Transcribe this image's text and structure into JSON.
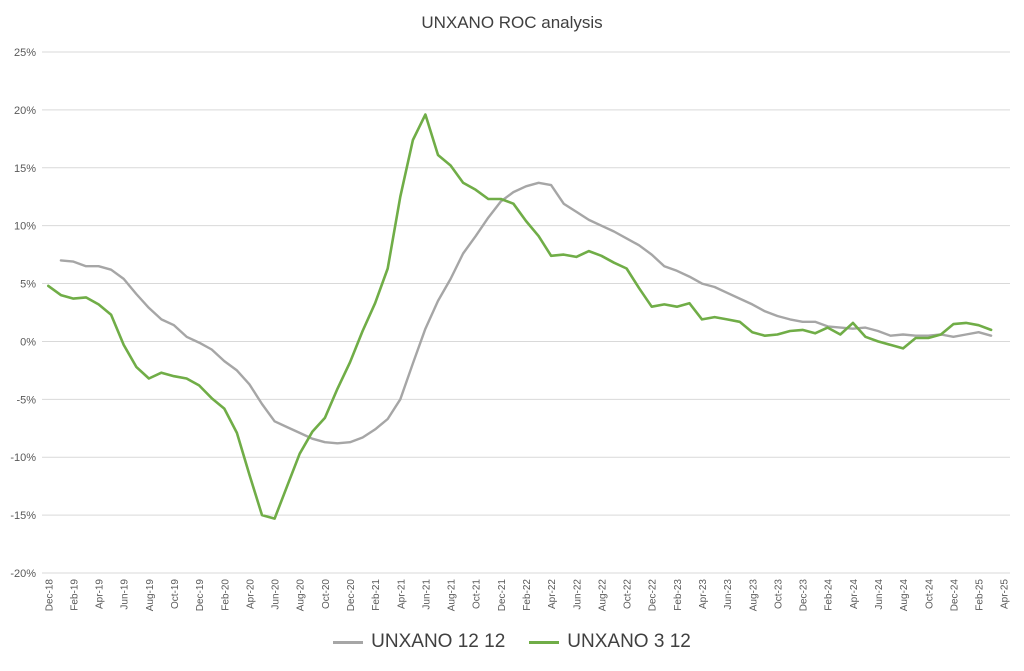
{
  "chart_data": {
    "type": "line",
    "title": "UNXANO ROC analysis",
    "xlabel": "",
    "ylabel": "",
    "ylim": [
      -20,
      25
    ],
    "y_ticks": [
      "-20%",
      "-15%",
      "-10%",
      "-5%",
      "0%",
      "5%",
      "10%",
      "15%",
      "20%",
      "25%"
    ],
    "y_tick_values": [
      -20,
      -15,
      -10,
      -5,
      0,
      5,
      10,
      15,
      20,
      25
    ],
    "x_tick_labels": [
      "Dec-18",
      "Feb-19",
      "Apr-19",
      "Jun-19",
      "Aug-19",
      "Oct-19",
      "Dec-19",
      "Feb-20",
      "Apr-20",
      "Jun-20",
      "Aug-20",
      "Oct-20",
      "Dec-20",
      "Feb-21",
      "Apr-21",
      "Jun-21",
      "Aug-21",
      "Oct-21",
      "Dec-21",
      "Feb-22",
      "Apr-22",
      "Jun-22",
      "Aug-22",
      "Oct-22",
      "Dec-22",
      "Feb-23",
      "Apr-23",
      "Jun-23",
      "Aug-23",
      "Oct-23",
      "Dec-23",
      "Feb-24",
      "Apr-24",
      "Jun-24",
      "Aug-24",
      "Oct-24",
      "Dec-24",
      "Feb-25",
      "Apr-25"
    ],
    "grid": true,
    "legend_position": "bottom",
    "series": [
      {
        "name": "UNXANO 12 12",
        "color": "#a6a6a6",
        "start": "Jan-19",
        "values": [
          7.0,
          6.9,
          6.5,
          6.5,
          6.2,
          5.4,
          4.1,
          2.9,
          1.9,
          1.4,
          0.4,
          -0.1,
          -0.7,
          -1.7,
          -2.5,
          -3.7,
          -5.4,
          -6.9,
          -7.4,
          -7.9,
          -8.4,
          -8.7,
          -8.8,
          -8.7,
          -8.3,
          -7.6,
          -6.7,
          -5.0,
          -1.9,
          1.1,
          3.5,
          5.4,
          7.6,
          9.1,
          10.7,
          12.1,
          12.9,
          13.4,
          13.7,
          13.5,
          11.9,
          11.2,
          10.5,
          10.0,
          9.5,
          8.9,
          8.3,
          7.5,
          6.5,
          6.1,
          5.6,
          5.0,
          4.7,
          4.2,
          3.7,
          3.2,
          2.6,
          2.2,
          1.9,
          1.7,
          1.7,
          1.3,
          1.2,
          1.1,
          1.2,
          0.9,
          0.5,
          0.6,
          0.5,
          0.5,
          0.6,
          0.4,
          0.6,
          0.8,
          0.5
        ]
      },
      {
        "name": "UNXANO 3 12",
        "color": "#70ad47",
        "start": "Dec-18",
        "values": [
          4.8,
          4.0,
          3.7,
          3.8,
          3.2,
          2.3,
          -0.3,
          -2.2,
          -3.2,
          -2.7,
          -3.0,
          -3.2,
          -3.8,
          -4.9,
          -5.8,
          -7.9,
          -11.5,
          -15.0,
          -15.3,
          -12.5,
          -9.7,
          -7.8,
          -6.6,
          -4.1,
          -1.8,
          0.9,
          3.3,
          6.3,
          12.5,
          17.4,
          19.6,
          16.1,
          15.2,
          13.7,
          13.1,
          12.3,
          12.3,
          11.9,
          10.4,
          9.1,
          7.4,
          7.5,
          7.3,
          7.8,
          7.4,
          6.8,
          6.3,
          4.6,
          3.0,
          3.2,
          3.0,
          3.3,
          1.9,
          2.1,
          1.9,
          1.7,
          0.8,
          0.5,
          0.6,
          0.9,
          1.0,
          0.7,
          1.2,
          0.6,
          1.6,
          0.4,
          0.0,
          -0.3,
          -0.6,
          0.3,
          0.3,
          0.6,
          1.5,
          1.6,
          1.4,
          1.0
        ]
      }
    ]
  }
}
